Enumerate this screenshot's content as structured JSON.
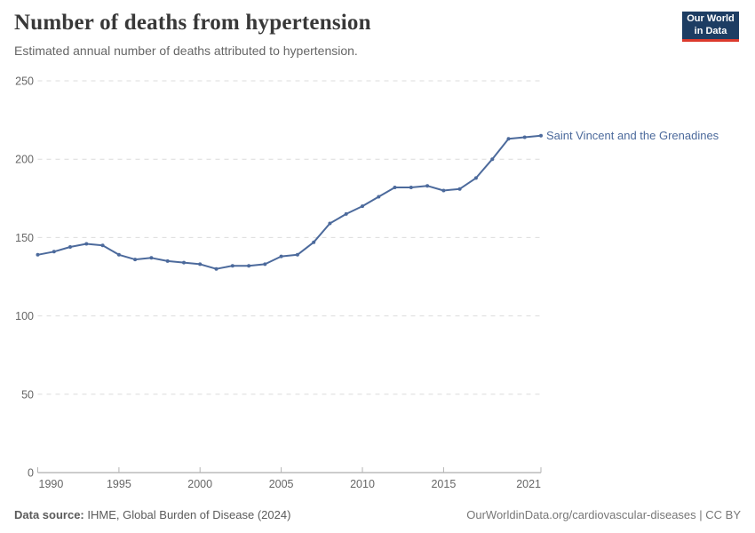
{
  "header": {
    "title": "Number of deaths from hypertension",
    "subtitle": "Estimated annual number of deaths attributed to hypertension.",
    "logo": {
      "line1": "Our World",
      "line2": "in Data",
      "bg_color": "#1d3d63",
      "accent_color": "#dc3a2d"
    }
  },
  "chart_data": {
    "type": "line",
    "title": "Number of deaths from hypertension",
    "xlabel": "",
    "ylabel": "",
    "xlim": [
      1990,
      2021
    ],
    "ylim": [
      0,
      250
    ],
    "x_ticks": [
      1990,
      1995,
      2000,
      2005,
      2010,
      2015,
      2021
    ],
    "y_ticks": [
      0,
      50,
      100,
      150,
      200,
      250
    ],
    "grid": "horizontal-dashed",
    "legend_position": "end-of-line-label",
    "x": [
      1990,
      1991,
      1992,
      1993,
      1994,
      1995,
      1996,
      1997,
      1998,
      1999,
      2000,
      2001,
      2002,
      2003,
      2004,
      2005,
      2006,
      2007,
      2008,
      2009,
      2010,
      2011,
      2012,
      2013,
      2014,
      2015,
      2016,
      2017,
      2018,
      2019,
      2020,
      2021
    ],
    "series": [
      {
        "name": "Saint Vincent and the Grenadines",
        "color": "#4c6a9c",
        "values": [
          139,
          141,
          144,
          146,
          145,
          139,
          136,
          137,
          135,
          134,
          133,
          130,
          132,
          132,
          133,
          138,
          139,
          147,
          159,
          165,
          170,
          176,
          182,
          182,
          183,
          180,
          181,
          188,
          200,
          213,
          214,
          215
        ]
      }
    ],
    "colors": {
      "gridline": "#dcdcdc",
      "axis": "#999999",
      "tick": "#b3b3b3",
      "tick_label": "#666666"
    }
  },
  "footer": {
    "source_label": "Data source:",
    "source_text": " IHME, Global Burden of Disease (2024)",
    "link_text": "OurWorldinData.org/cardiovascular-diseases | CC BY"
  }
}
